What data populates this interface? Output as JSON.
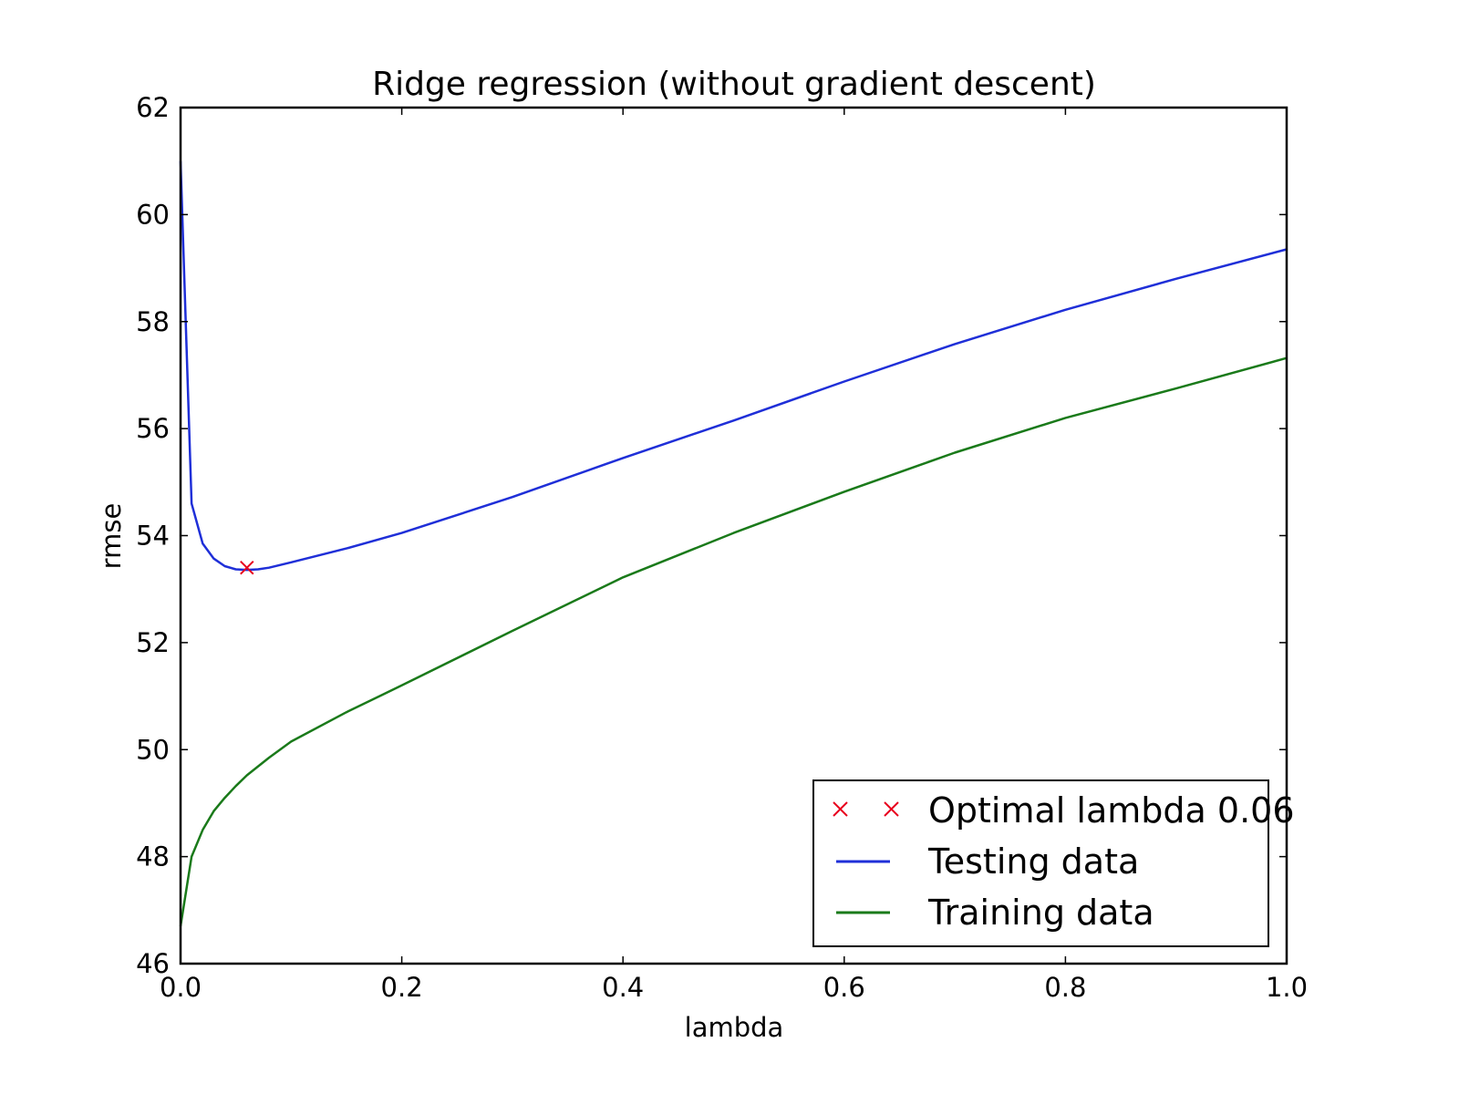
{
  "chart_data": {
    "type": "line",
    "title": "Ridge regression (without gradient descent)",
    "xlabel": "lambda",
    "ylabel": "rmse",
    "xlim": [
      0.0,
      1.0
    ],
    "ylim": [
      46,
      62
    ],
    "xticks": [
      "0.0",
      "0.2",
      "0.4",
      "0.6",
      "0.8",
      "1.0"
    ],
    "yticks": [
      "46",
      "48",
      "50",
      "52",
      "54",
      "56",
      "58",
      "60",
      "62"
    ],
    "grid": false,
    "legend_position": "lower-right",
    "series": [
      {
        "name": "Testing data",
        "color": "#1f2fd8",
        "x": [
          0.0,
          0.01,
          0.02,
          0.03,
          0.04,
          0.05,
          0.06,
          0.07,
          0.08,
          0.1,
          0.15,
          0.2,
          0.3,
          0.4,
          0.5,
          0.6,
          0.7,
          0.8,
          0.9,
          1.0
        ],
        "y": [
          61.0,
          54.6,
          53.85,
          53.57,
          53.43,
          53.37,
          53.36,
          53.37,
          53.4,
          53.5,
          53.76,
          54.05,
          54.72,
          55.45,
          56.15,
          56.88,
          57.58,
          58.22,
          58.8,
          59.35
        ]
      },
      {
        "name": "Training data",
        "color": "#1a7a1a",
        "x": [
          0.0,
          0.01,
          0.02,
          0.03,
          0.04,
          0.05,
          0.06,
          0.08,
          0.1,
          0.15,
          0.2,
          0.3,
          0.4,
          0.5,
          0.6,
          0.7,
          0.8,
          0.9,
          1.0
        ],
        "y": [
          46.7,
          48.0,
          48.5,
          48.85,
          49.1,
          49.32,
          49.52,
          49.85,
          50.15,
          50.7,
          51.2,
          52.22,
          53.22,
          54.05,
          54.82,
          55.55,
          56.2,
          56.75,
          57.32
        ]
      },
      {
        "name": "Optimal lambda 0.06",
        "color": "#e8001c",
        "marker": "x",
        "x": [
          0.06
        ],
        "y": [
          53.4
        ]
      }
    ]
  }
}
